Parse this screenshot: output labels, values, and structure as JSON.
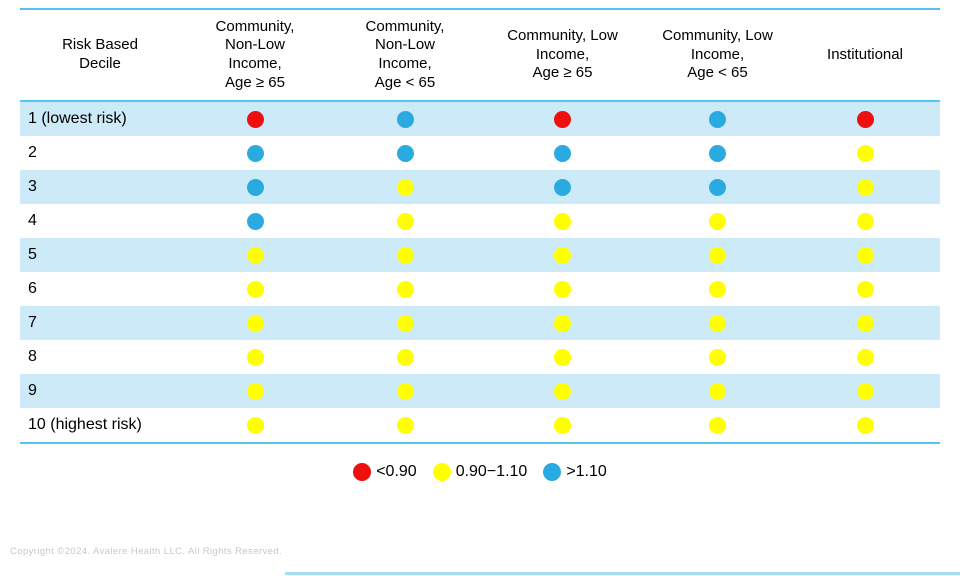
{
  "table": {
    "columns": [
      "Risk Based\nDecile",
      "Community,\nNon-Low\nIncome,\nAge ≥ 65",
      "Community,\nNon-Low\nIncome,\nAge < 65",
      "Community, Low\nIncome,\nAge ≥ 65",
      "Community, Low\nIncome,\nAge < 65",
      "Institutional"
    ],
    "rows": [
      {
        "label": "1 (lowest risk)",
        "values": [
          "red",
          "blue",
          "red",
          "blue",
          "red"
        ]
      },
      {
        "label": "2",
        "values": [
          "blue",
          "blue",
          "blue",
          "blue",
          "yellow"
        ]
      },
      {
        "label": "3",
        "values": [
          "blue",
          "yellow",
          "blue",
          "blue",
          "yellow"
        ]
      },
      {
        "label": "4",
        "values": [
          "blue",
          "yellow",
          "yellow",
          "yellow",
          "yellow"
        ]
      },
      {
        "label": "5",
        "values": [
          "yellow",
          "yellow",
          "yellow",
          "yellow",
          "yellow"
        ]
      },
      {
        "label": "6",
        "values": [
          "yellow",
          "yellow",
          "yellow",
          "yellow",
          "yellow"
        ]
      },
      {
        "label": "7",
        "values": [
          "yellow",
          "yellow",
          "yellow",
          "yellow",
          "yellow"
        ]
      },
      {
        "label": "8",
        "values": [
          "yellow",
          "yellow",
          "yellow",
          "yellow",
          "yellow"
        ]
      },
      {
        "label": "9",
        "values": [
          "yellow",
          "yellow",
          "yellow",
          "yellow",
          "yellow"
        ]
      },
      {
        "label": "10 (highest risk)",
        "values": [
          "yellow",
          "yellow",
          "yellow",
          "yellow",
          "yellow"
        ]
      }
    ]
  },
  "legend": {
    "items": [
      {
        "color": "red",
        "label": "<0.90"
      },
      {
        "color": "yellow",
        "label": "0.90−1.10"
      },
      {
        "color": "blue",
        "label": ">1.10"
      }
    ]
  },
  "colors": {
    "red": "#ee0f0f",
    "yellow": "#ffff00",
    "blue": "#29abe2",
    "stripe": "#cdeaf8",
    "rule": "#55c4f0",
    "copyright": "#c8c8c8"
  },
  "footer": {
    "copyright": "Copyright ©2024. Avalere Health LLC. All Rights Reserved."
  },
  "chart_data": {
    "type": "table",
    "title": "",
    "row_header": "Risk Based Decile",
    "columns": [
      "Community, Non-Low Income, Age ≥ 65",
      "Community, Non-Low Income, Age < 65",
      "Community, Low Income, Age ≥ 65",
      "Community, Low Income, Age < 65",
      "Institutional"
    ],
    "rows": [
      "1 (lowest risk)",
      "2",
      "3",
      "4",
      "5",
      "6",
      "7",
      "8",
      "9",
      "10 (highest risk)"
    ],
    "values": [
      [
        "<0.90",
        ">1.10",
        "<0.90",
        ">1.10",
        "<0.90"
      ],
      [
        ">1.10",
        ">1.10",
        ">1.10",
        ">1.10",
        "0.90−1.10"
      ],
      [
        ">1.10",
        "0.90−1.10",
        ">1.10",
        ">1.10",
        "0.90−1.10"
      ],
      [
        ">1.10",
        "0.90−1.10",
        "0.90−1.10",
        "0.90−1.10",
        "0.90−1.10"
      ],
      [
        "0.90−1.10",
        "0.90−1.10",
        "0.90−1.10",
        "0.90−1.10",
        "0.90−1.10"
      ],
      [
        "0.90−1.10",
        "0.90−1.10",
        "0.90−1.10",
        "0.90−1.10",
        "0.90−1.10"
      ],
      [
        "0.90−1.10",
        "0.90−1.10",
        "0.90−1.10",
        "0.90−1.10",
        "0.90−1.10"
      ],
      [
        "0.90−1.10",
        "0.90−1.10",
        "0.90−1.10",
        "0.90−1.10",
        "0.90−1.10"
      ],
      [
        "0.90−1.10",
        "0.90−1.10",
        "0.90−1.10",
        "0.90−1.10",
        "0.90−1.10"
      ],
      [
        "0.90−1.10",
        "0.90−1.10",
        "0.90−1.10",
        "0.90−1.10",
        "0.90−1.10"
      ]
    ],
    "legend": [
      {
        "color": "red",
        "meaning": "<0.90"
      },
      {
        "color": "yellow",
        "meaning": "0.90−1.10"
      },
      {
        "color": "blue",
        "meaning": ">1.10"
      }
    ],
    "legend_position": "bottom-center"
  }
}
